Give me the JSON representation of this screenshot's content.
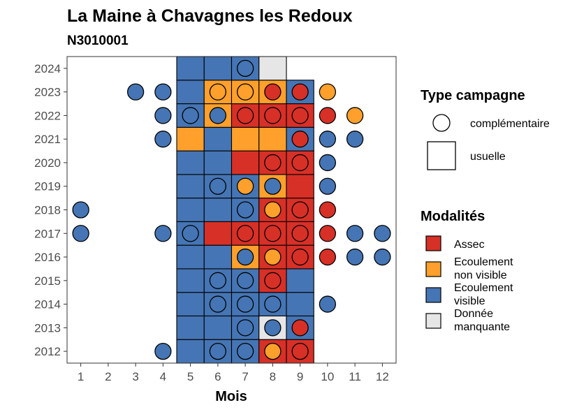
{
  "chart_data": {
    "type": "heatmap",
    "title": "La Maine à Chavagnes les Redoux",
    "subtitle": "N3010001",
    "xlabel": "Mois",
    "ylabel": "",
    "x_ticks": [
      "1",
      "2",
      "3",
      "4",
      "5",
      "6",
      "7",
      "8",
      "9",
      "10",
      "11",
      "12"
    ],
    "y_ticks": [
      "2012",
      "2013",
      "2014",
      "2015",
      "2016",
      "2017",
      "2018",
      "2019",
      "2020",
      "2021",
      "2022",
      "2023",
      "2024"
    ],
    "xlim": [
      1,
      12
    ],
    "ylim": [
      2012,
      2024
    ],
    "grid": false,
    "legend_position": "right",
    "colors": {
      "Assec": "#d73027",
      "Ecoulement non visible": "#fea02b",
      "Ecoulement visible": "#4575b4",
      "Donnée manquante": "#e6e6e6"
    },
    "legend_shape": {
      "title": "Type campagne",
      "items": [
        {
          "label": "complémentaire",
          "shape": "circle"
        },
        {
          "label": "usuelle",
          "shape": "square"
        }
      ]
    },
    "legend_fill": {
      "title": "Modalités",
      "items": [
        {
          "key": "A",
          "lines": [
            "Assec"
          ],
          "color": "#d73027"
        },
        {
          "key": "N",
          "lines": [
            "Ecoulement",
            "non visible"
          ],
          "color": "#fea02b"
        },
        {
          "key": "V",
          "lines": [
            "Ecoulement",
            "visible"
          ],
          "color": "#4575b4"
        },
        {
          "key": "M",
          "lines": [
            "Donnée",
            "manquante"
          ],
          "color": "#e6e6e6"
        }
      ]
    },
    "usuelle": {
      "2012": {
        "5": "V",
        "6": "V",
        "7": "V",
        "8": "A",
        "9": "A"
      },
      "2013": {
        "5": "V",
        "6": "V",
        "7": "V",
        "8": "M",
        "9": "V"
      },
      "2014": {
        "5": "V",
        "6": "V",
        "7": "V",
        "8": "V",
        "9": "V"
      },
      "2015": {
        "5": "V",
        "6": "V",
        "7": "V",
        "8": "A",
        "9": "V"
      },
      "2016": {
        "5": "V",
        "6": "V",
        "7": "N",
        "8": "A",
        "9": "A"
      },
      "2017": {
        "5": "V",
        "6": "A",
        "7": "A",
        "8": "A",
        "9": "A"
      },
      "2018": {
        "5": "V",
        "6": "V",
        "7": "V",
        "8": "A",
        "9": "A"
      },
      "2019": {
        "5": "V",
        "6": "V",
        "7": "V",
        "8": "N",
        "9": "A"
      },
      "2020": {
        "5": "V",
        "6": "V",
        "7": "A",
        "8": "A",
        "9": "A"
      },
      "2021": {
        "5": "N",
        "6": "V",
        "7": "N",
        "8": "N",
        "9": "V"
      },
      "2022": {
        "5": "V",
        "6": "N",
        "7": "A",
        "8": "A",
        "9": "A"
      },
      "2023": {
        "5": "V",
        "6": "N",
        "7": "N",
        "8": "N",
        "9": "V"
      },
      "2024": {
        "5": "V",
        "6": "V",
        "7": "V",
        "8": "M"
      }
    },
    "complementaire": {
      "2012": {
        "4": "V",
        "6": "V",
        "7": "V",
        "8": "N",
        "9": "A"
      },
      "2013": {
        "7": "V",
        "8": "V",
        "9": "A"
      },
      "2014": {
        "6": "V",
        "7": "V",
        "8": "V",
        "10": "V"
      },
      "2015": {
        "6": "V",
        "7": "V",
        "8": "A"
      },
      "2016": {
        "7": "V",
        "8": "N",
        "9": "A",
        "10": "A",
        "11": "V",
        "12": "V"
      },
      "2017": {
        "1": "V",
        "4": "V",
        "5": "V",
        "7": "A",
        "8": "A",
        "9": "A",
        "10": "A",
        "11": "V",
        "12": "V"
      },
      "2018": {
        "1": "V",
        "7": "V",
        "8": "N",
        "9": "A",
        "10": "A"
      },
      "2019": {
        "6": "V",
        "7": "N",
        "8": "V",
        "10": "V"
      },
      "2020": {
        "8": "A",
        "9": "A",
        "10": "V"
      },
      "2021": {
        "4": "V",
        "9": "A",
        "10": "V",
        "11": "V"
      },
      "2022": {
        "4": "V",
        "5": "V",
        "6": "V",
        "7": "A",
        "8": "A",
        "9": "A",
        "10": "A",
        "11": "N"
      },
      "2023": {
        "3": "V",
        "4": "V",
        "6": "N",
        "7": "N",
        "8": "A",
        "9": "A",
        "10": "N"
      },
      "2024": {
        "7": "V"
      }
    }
  }
}
